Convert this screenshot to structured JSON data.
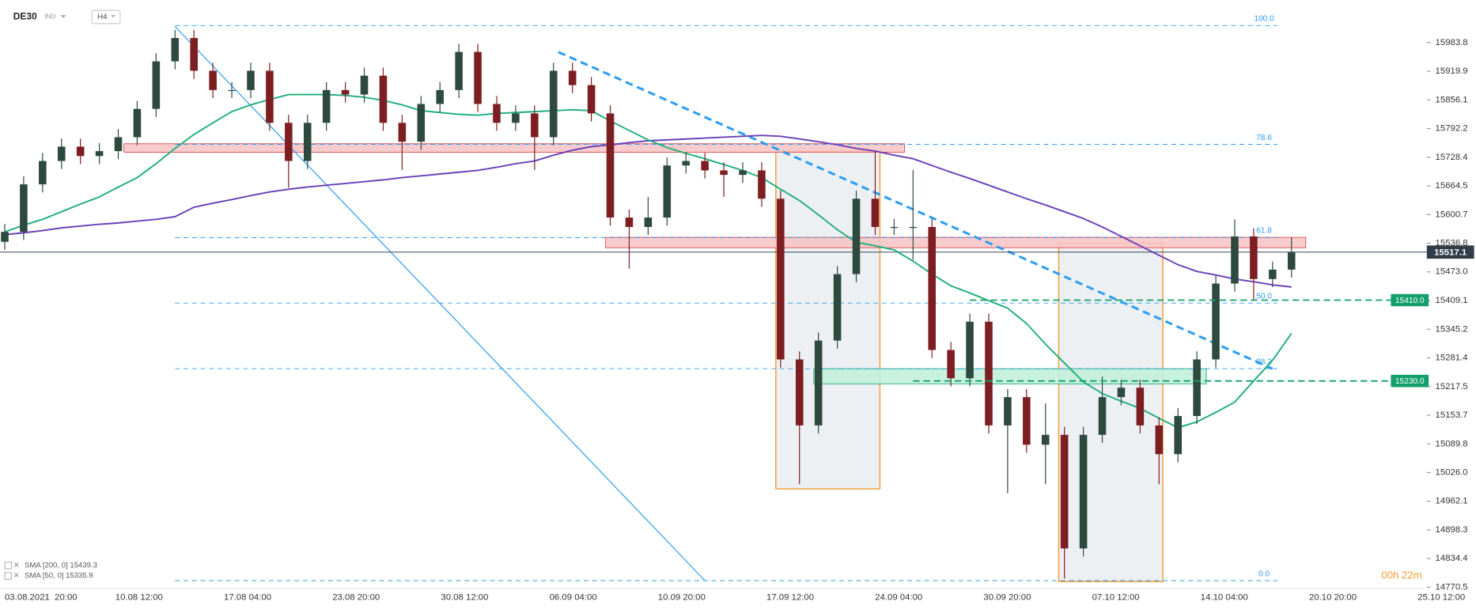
{
  "header": {
    "symbol": "DE30",
    "market": "IND",
    "timeframe": "H4"
  },
  "chart_data": {
    "type": "candlestick",
    "up_color": "#2e4a3f",
    "down_color": "#7d1f22",
    "open": [
      15540,
      15562,
      15668,
      15720,
      15752,
      15731,
      15742,
      15773,
      15836,
      15942,
      15994,
      15921,
      15878,
      15878,
      15921,
      15805,
      15720,
      15805,
      15878,
      15868,
      15910,
      15805,
      15763,
      15847,
      15878,
      15963,
      15847,
      15805,
      15826,
      15773,
      15921,
      15889,
      15826,
      15594,
      15573,
      15594,
      15710,
      15720,
      15699,
      15689,
      15699,
      15636,
      15278,
      15131,
      15320,
      15468,
      15636,
      15573,
      15573,
      15573,
      15299,
      15236,
      15362,
      15131,
      15194,
      15088,
      15110,
      14857,
      15110,
      15194,
      15215,
      15131,
      15067,
      15152,
      15278,
      15447,
      15552,
      15457,
      15478
    ],
    "high": [
      15580,
      15686,
      15738,
      15770,
      15770,
      15760,
      15791,
      15854,
      15960,
      16012,
      16012,
      15939,
      15896,
      15939,
      15939,
      15823,
      15823,
      15896,
      15896,
      15928,
      15928,
      15823,
      15865,
      15896,
      15981,
      15981,
      15865,
      15844,
      15844,
      15939,
      15939,
      15907,
      15844,
      15612,
      15640,
      15728,
      15738,
      15738,
      15717,
      15717,
      15717,
      15654,
      15296,
      15338,
      15486,
      15654,
      15740,
      15591,
      15700,
      15591,
      15317,
      15380,
      15380,
      15212,
      15212,
      15180,
      15128,
      15128,
      15240,
      15233,
      15233,
      15149,
      15170,
      15296,
      15465,
      15590,
      15570,
      15496,
      15550
    ],
    "low": [
      15522,
      15544,
      15650,
      15702,
      15713,
      15713,
      15724,
      15755,
      15818,
      15924,
      15903,
      15860,
      15860,
      15860,
      15787,
      15660,
      15702,
      15787,
      15850,
      15850,
      15787,
      15700,
      15745,
      15829,
      15860,
      15829,
      15787,
      15787,
      15700,
      15755,
      15871,
      15808,
      15576,
      15480,
      15555,
      15576,
      15692,
      15681,
      15640,
      15671,
      15618,
      15260,
      15000,
      15113,
      15302,
      15450,
      15555,
      15555,
      15500,
      15281,
      15218,
      15218,
      15113,
      14980,
      15070,
      15000,
      14790,
      14839,
      15092,
      15176,
      15113,
      15000,
      15049,
      15134,
      15260,
      15429,
      15410,
      15439,
      15460
    ],
    "close": [
      15562,
      15668,
      15720,
      15752,
      15731,
      15742,
      15773,
      15836,
      15942,
      15994,
      15921,
      15878,
      15878,
      15921,
      15805,
      15720,
      15805,
      15878,
      15868,
      15910,
      15805,
      15763,
      15847,
      15878,
      15963,
      15847,
      15805,
      15826,
      15773,
      15921,
      15889,
      15826,
      15594,
      15573,
      15594,
      15710,
      15720,
      15699,
      15689,
      15699,
      15636,
      15278,
      15131,
      15320,
      15468,
      15636,
      15573,
      15573,
      15573,
      15299,
      15236,
      15362,
      15131,
      15194,
      15088,
      15110,
      14857,
      15110,
      15194,
      15215,
      15131,
      15067,
      15152,
      15278,
      15447,
      15552,
      15457,
      15478,
      15517.1
    ],
    "series": [
      {
        "name": "SMA [200, 0] 15439.3",
        "color": "#6a3fb8",
        "values": [
          15556,
          15560,
          15565,
          15571,
          15575,
          15579,
          15582,
          15586,
          15590,
          15596,
          15617,
          15626,
          15634,
          15643,
          15651,
          15657,
          15662,
          15666,
          15670,
          15674,
          15678,
          15683,
          15687,
          15691,
          15695,
          15699,
          15706,
          15714,
          15720,
          15733,
          15744,
          15752,
          15756,
          15761,
          15765,
          15767,
          15769,
          15771,
          15773,
          15775,
          15777,
          15775,
          15769,
          15763,
          15756,
          15748,
          15742,
          15733,
          15725,
          15710,
          15695,
          15681,
          15666,
          15651,
          15636,
          15622,
          15607,
          15592,
          15573,
          15552,
          15531,
          15510,
          15489,
          15474,
          15466,
          15457,
          15451,
          15444,
          15439.3
        ]
      },
      {
        "name": "SMA [50, 0] 15335.9",
        "color": "#1fae7a",
        "values": [
          15562,
          15577,
          15590,
          15607,
          15624,
          15640,
          15662,
          15683,
          15714,
          15748,
          15779,
          15805,
          15830,
          15845,
          15857,
          15868,
          15868,
          15868,
          15866,
          15862,
          15855,
          15845,
          15832,
          15828,
          15824,
          15822,
          15826,
          15828,
          15830,
          15832,
          15834,
          15832,
          15809,
          15788,
          15767,
          15750,
          15737,
          15725,
          15712,
          15699,
          15683,
          15657,
          15632,
          15600,
          15567,
          15539,
          15531,
          15522,
          15497,
          15468,
          15442,
          15426,
          15409,
          15392,
          15358,
          15312,
          15270,
          15228,
          15202,
          15185,
          15169,
          15147,
          15126,
          15139,
          15160,
          15183,
          15230,
          15276,
          15335.9
        ]
      }
    ],
    "ylim": [
      14768.4,
      16078.6
    ],
    "yticks": [
      15983.8,
      15919.9,
      15856.1,
      15792.2,
      15728.4,
      15664.5,
      15600.7,
      15536.8,
      {
        "value": 15473,
        "label": "15473.0"
      },
      15409.1,
      15345.2,
      15281.4,
      15217.5,
      15153.7,
      15089.8,
      {
        "value": 15026,
        "label": "15026.0"
      },
      14962.1,
      14898.3,
      14834.4,
      14770.5
    ],
    "grid": false,
    "x_labels": [
      "03.08.2021  20:00",
      "10.08  12:00",
      "17.08  04:00",
      "23.08  20:00",
      "30.08  12:00",
      "06.09  04:00",
      "10.09  20:00",
      "17.09  12:00",
      "24.09  04:00",
      "30.09  20:00",
      "07.10  12:00",
      "14.10  04:00",
      "20.10  20:00",
      "25.10  12:00"
    ],
    "fibonacci": [
      {
        "label": "100.0",
        "value": 16021.7
      },
      {
        "label": "78.6",
        "value": 15757.1
      },
      {
        "label": "61.8",
        "value": 15549.4
      },
      {
        "label": "50.0",
        "value": 15403.5
      },
      {
        "label": "38.2",
        "value": 15257.5
      },
      {
        "label": "0.0",
        "value": 14785.2
      }
    ],
    "fib_color": "#2a9df4",
    "levels": [
      {
        "value": 15410,
        "label": "15410.0",
        "color": "#14a06c"
      },
      {
        "value": 15230,
        "label": "15230.0",
        "color": "#14a06c"
      }
    ],
    "last_price": 15517.1,
    "countdown": "00h 22m"
  }
}
